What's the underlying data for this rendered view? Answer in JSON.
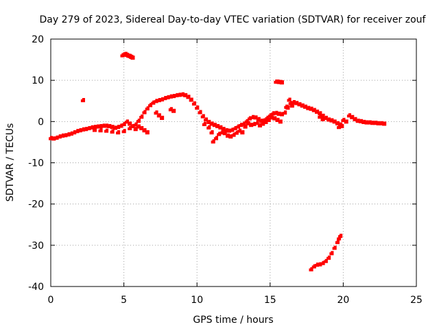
{
  "chart_data": {
    "type": "scatter",
    "title": "Day 279 of 2023, Sidereal Day-to-day VTEC variation (SDTVAR) for receiver zouf",
    "xlabel": "GPS time / hours",
    "ylabel": "SDTVAR / TECUs",
    "xlim": [
      0,
      25
    ],
    "ylim": [
      -40,
      20
    ],
    "xticks": [
      0,
      5,
      10,
      15,
      20,
      25
    ],
    "yticks": [
      -40,
      -30,
      -20,
      -10,
      0,
      10,
      20
    ],
    "x_tick_labels": [
      "0",
      "5",
      "10",
      "15",
      "20",
      "25"
    ],
    "y_tick_labels": [
      "-40",
      "-30",
      "-20",
      "-10",
      "0",
      "10",
      "20"
    ],
    "grid": true,
    "marker": "+",
    "series_color": "#ff0000",
    "series": [
      {
        "name": "main-trace",
        "points": [
          [
            0.0,
            -4.0
          ],
          [
            0.2,
            -4.1
          ],
          [
            0.4,
            -3.9
          ],
          [
            0.6,
            -3.6
          ],
          [
            0.8,
            -3.4
          ],
          [
            1.0,
            -3.3
          ],
          [
            1.2,
            -3.1
          ],
          [
            1.4,
            -2.9
          ],
          [
            1.6,
            -2.6
          ],
          [
            1.8,
            -2.3
          ],
          [
            2.0,
            -2.1
          ],
          [
            2.2,
            -1.9
          ],
          [
            2.4,
            -1.8
          ],
          [
            2.6,
            -1.6
          ],
          [
            2.8,
            -1.4
          ],
          [
            3.0,
            -1.3
          ],
          [
            3.2,
            -1.2
          ],
          [
            3.4,
            -1.1
          ],
          [
            3.6,
            -1.0
          ],
          [
            3.8,
            -1.0
          ],
          [
            4.0,
            -1.1
          ],
          [
            4.2,
            -1.3
          ],
          [
            4.4,
            -1.5
          ],
          [
            4.6,
            -1.3
          ],
          [
            4.8,
            -1.0
          ],
          [
            5.0,
            -0.6
          ],
          [
            5.2,
            0.0
          ],
          [
            5.4,
            -0.5
          ],
          [
            5.6,
            -1.1
          ],
          [
            5.8,
            -0.7
          ],
          [
            6.0,
            0.2
          ],
          [
            6.2,
            1.2
          ],
          [
            6.4,
            2.3
          ],
          [
            6.6,
            3.2
          ],
          [
            6.8,
            4.0
          ],
          [
            7.0,
            4.6
          ],
          [
            7.2,
            5.0
          ],
          [
            7.4,
            5.2
          ],
          [
            7.6,
            5.4
          ],
          [
            7.8,
            5.7
          ],
          [
            8.0,
            5.9
          ],
          [
            8.2,
            6.1
          ],
          [
            8.4,
            6.2
          ],
          [
            8.6,
            6.4
          ],
          [
            8.8,
            6.5
          ],
          [
            9.0,
            6.6
          ],
          [
            9.2,
            6.4
          ],
          [
            9.4,
            6.0
          ],
          [
            9.6,
            5.3
          ],
          [
            9.8,
            4.4
          ],
          [
            10.0,
            3.4
          ],
          [
            10.2,
            2.3
          ],
          [
            10.4,
            1.3
          ],
          [
            10.6,
            0.5
          ],
          [
            10.8,
            -0.1
          ],
          [
            11.0,
            -0.5
          ],
          [
            11.2,
            -0.8
          ],
          [
            11.4,
            -1.1
          ],
          [
            11.6,
            -1.4
          ],
          [
            11.8,
            -1.8
          ],
          [
            12.0,
            -2.1
          ],
          [
            12.2,
            -2.2
          ],
          [
            12.4,
            -2.0
          ],
          [
            12.6,
            -1.6
          ],
          [
            12.8,
            -1.2
          ],
          [
            13.0,
            -0.8
          ],
          [
            13.2,
            -0.5
          ],
          [
            13.4,
            0.1
          ],
          [
            13.6,
            0.8
          ],
          [
            13.8,
            1.1
          ],
          [
            14.0,
            1.0
          ],
          [
            14.2,
            0.6
          ],
          [
            14.4,
            0.2
          ],
          [
            14.6,
            0.3
          ],
          [
            14.8,
            0.9
          ],
          [
            15.0,
            1.5
          ],
          [
            15.2,
            2.0
          ],
          [
            15.4,
            2.1
          ],
          [
            15.6,
            1.9
          ],
          [
            15.8,
            1.8
          ],
          [
            16.0,
            2.2
          ],
          [
            16.2,
            3.4
          ],
          [
            16.4,
            4.5
          ],
          [
            16.6,
            4.7
          ],
          [
            16.8,
            4.5
          ],
          [
            17.0,
            4.2
          ],
          [
            17.2,
            3.9
          ],
          [
            17.4,
            3.6
          ],
          [
            17.6,
            3.3
          ],
          [
            17.8,
            3.1
          ],
          [
            18.0,
            2.8
          ],
          [
            18.2,
            2.4
          ],
          [
            18.4,
            2.0
          ],
          [
            18.6,
            1.4
          ],
          [
            18.8,
            0.9
          ],
          [
            19.0,
            0.5
          ],
          [
            19.2,
            0.3
          ],
          [
            19.4,
            0.0
          ],
          [
            19.6,
            -0.4
          ],
          [
            19.8,
            -0.7
          ],
          [
            20.0,
            0.4
          ],
          [
            20.2,
            0.0
          ],
          [
            20.4,
            1.5
          ],
          [
            20.6,
            1.1
          ],
          [
            20.8,
            0.6
          ],
          [
            21.0,
            0.2
          ],
          [
            21.2,
            0.1
          ],
          [
            21.4,
            -0.1
          ],
          [
            21.6,
            -0.2
          ],
          [
            21.8,
            -0.2
          ],
          [
            22.0,
            -0.3
          ],
          [
            22.2,
            -0.3
          ],
          [
            22.4,
            -0.4
          ],
          [
            22.6,
            -0.4
          ],
          [
            22.8,
            -0.5
          ]
        ]
      },
      {
        "name": "lower-branch",
        "points": [
          [
            3.0,
            -2.0
          ],
          [
            3.4,
            -2.1
          ],
          [
            3.8,
            -2.2
          ],
          [
            4.2,
            -2.4
          ],
          [
            4.6,
            -2.6
          ],
          [
            5.0,
            -2.3
          ],
          [
            5.4,
            -1.6
          ],
          [
            5.8,
            -1.8
          ],
          [
            6.0,
            -1.2
          ],
          [
            6.2,
            -1.6
          ],
          [
            6.4,
            -2.1
          ],
          [
            6.6,
            -2.6
          ],
          [
            7.2,
            2.2
          ],
          [
            7.4,
            1.5
          ],
          [
            7.6,
            0.9
          ],
          [
            8.2,
            3.0
          ],
          [
            8.4,
            2.6
          ],
          [
            10.5,
            -0.6
          ],
          [
            10.8,
            -1.4
          ],
          [
            11.0,
            -2.6
          ],
          [
            11.1,
            -4.8
          ],
          [
            11.3,
            -4.0
          ],
          [
            11.5,
            -3.0
          ],
          [
            11.7,
            -2.6
          ],
          [
            11.9,
            -2.8
          ],
          [
            12.1,
            -3.4
          ],
          [
            12.3,
            -3.6
          ],
          [
            12.5,
            -3.2
          ],
          [
            12.7,
            -2.7
          ],
          [
            12.9,
            -2.2
          ],
          [
            13.1,
            -2.6
          ],
          [
            13.3,
            -1.2
          ],
          [
            13.5,
            -0.4
          ],
          [
            13.7,
            -0.8
          ],
          [
            13.9,
            -0.6
          ],
          [
            14.1,
            -0.3
          ],
          [
            14.3,
            -0.9
          ],
          [
            14.5,
            -0.5
          ],
          [
            14.7,
            -0.1
          ],
          [
            14.9,
            0.4
          ],
          [
            15.1,
            1.0
          ],
          [
            15.3,
            0.8
          ],
          [
            15.5,
            0.4
          ],
          [
            15.7,
            0.0
          ],
          [
            16.1,
            3.6
          ],
          [
            16.3,
            5.3
          ],
          [
            16.5,
            3.9
          ],
          [
            18.4,
            1.2
          ],
          [
            18.6,
            0.6
          ],
          [
            19.7,
            -1.3
          ],
          [
            19.9,
            -1.1
          ]
        ]
      },
      {
        "name": "negative-arc",
        "points": [
          [
            17.8,
            -35.8
          ],
          [
            18.0,
            -35.1
          ],
          [
            18.2,
            -34.7
          ],
          [
            18.4,
            -34.6
          ],
          [
            18.6,
            -34.3
          ],
          [
            18.8,
            -33.8
          ],
          [
            19.0,
            -33.0
          ],
          [
            19.2,
            -31.9
          ],
          [
            19.4,
            -30.6
          ],
          [
            19.6,
            -29.2
          ],
          [
            19.7,
            -28.3
          ],
          [
            19.8,
            -27.7
          ]
        ]
      },
      {
        "name": "upper-cluster-5h",
        "points": [
          [
            4.9,
            16.1
          ],
          [
            5.0,
            16.3
          ],
          [
            5.1,
            16.4
          ],
          [
            5.2,
            16.2
          ],
          [
            5.3,
            16.0
          ],
          [
            5.4,
            15.9
          ],
          [
            5.5,
            15.7
          ],
          [
            5.6,
            15.5
          ]
        ]
      },
      {
        "name": "upper-cluster-15h",
        "points": [
          [
            15.4,
            9.7
          ],
          [
            15.5,
            9.7
          ],
          [
            15.6,
            9.6
          ],
          [
            15.7,
            9.6
          ],
          [
            15.8,
            9.5
          ]
        ]
      },
      {
        "name": "isolated-point",
        "points": [
          [
            2.2,
            5.2
          ]
        ]
      }
    ]
  }
}
